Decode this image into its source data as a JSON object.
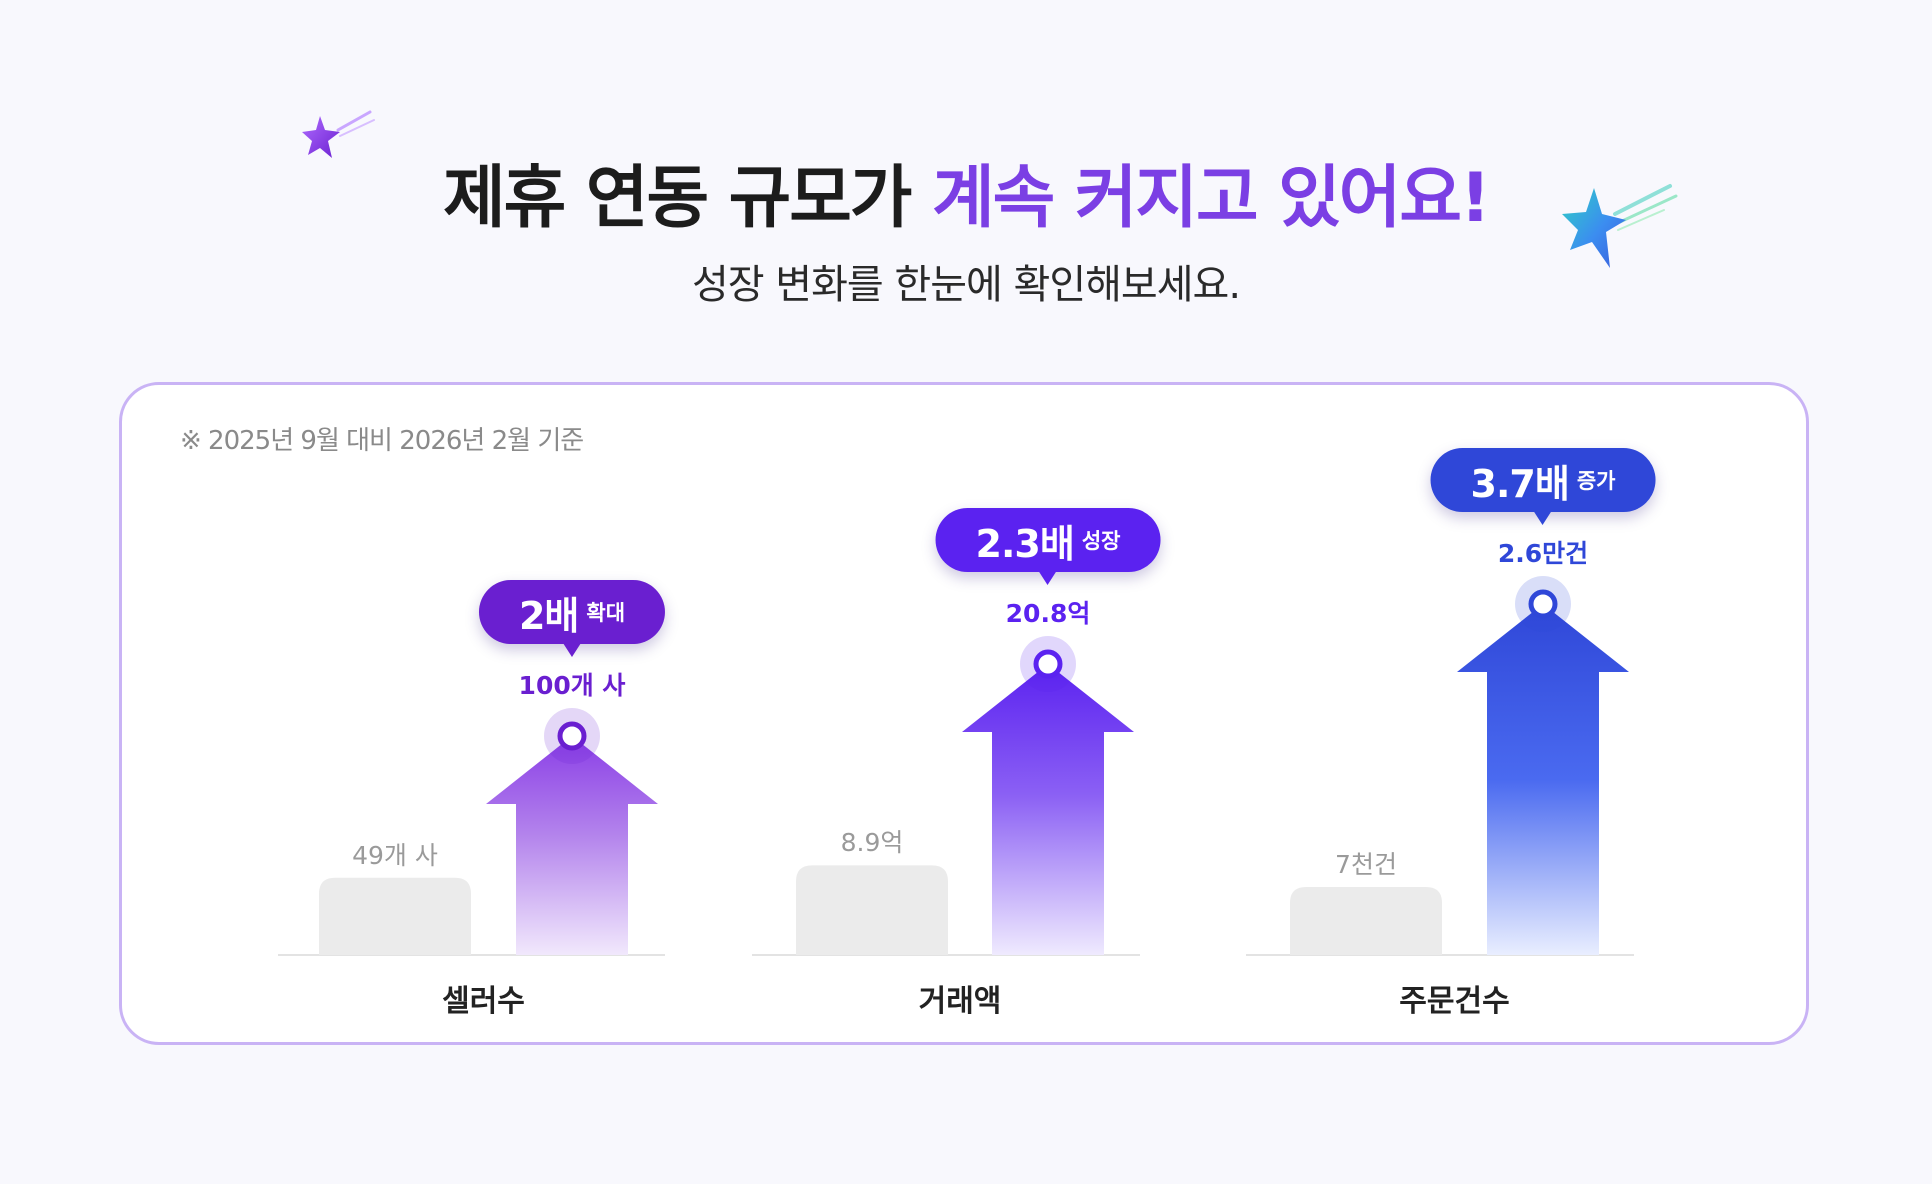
{
  "header": {
    "title_part1": "제휴 연동 규모가",
    "title_part2": "계속 커지고 있어요!",
    "subtitle": "성장 변화를 한눈에 확인해보세요."
  },
  "note": "※ 2025년 9월 대비 2026년 2월 기준",
  "colors": {
    "title_highlight": "#7b3fe4",
    "seller": "#6a1fd0",
    "gmv": "#5b22f0",
    "orders": "#2f47d8",
    "before_bar": "#ebebeb"
  },
  "icons": [
    "sparkle-star-purple-icon",
    "sparkle-star-teal-icon"
  ],
  "chart_data": {
    "type": "bar",
    "categories": [
      "셀러수",
      "거래액",
      "주문건수"
    ],
    "series": [
      {
        "values": [
          49,
          8.9,
          7000
        ]
      },
      {
        "values": [
          100,
          20.8,
          26000
        ]
      }
    ],
    "data_labels": {
      "before": [
        "49개 사",
        "8.9억",
        "7천건"
      ],
      "after": [
        "100개 사",
        "20.8억",
        "2.6만건"
      ]
    },
    "badges": [
      {
        "value": "2배",
        "text": "확대"
      },
      {
        "value": "2.3배",
        "text": "성장"
      },
      {
        "value": "3.7배",
        "text": "증가"
      }
    ]
  }
}
